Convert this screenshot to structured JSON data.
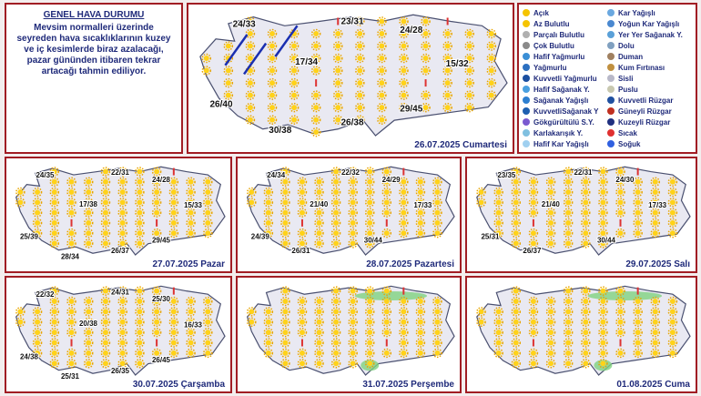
{
  "general": {
    "title": "GENEL HAVA DURUMU",
    "text": "Mevsim normalleri üzerinde seyreden hava sıcaklıklarının kuzey ve iç kesimlerde biraz azalacağı, pazar gününden itibaren tekrar artacağı tahmin ediliyor."
  },
  "legend": [
    "Açık",
    "Az Bulutlu",
    "Parçalı Bulutlu",
    "Çok Bulutlu",
    "Hafif Yağmurlu",
    "Yağmurlu",
    "Kuvvetli Yağmurlu",
    "Hafif Sağanak Y.",
    "Sağanak Yağışlı",
    "KuvvetliSağanak Y",
    "Gökgürültülü S.Y.",
    "Karlakarışık Y.",
    "Hafif Kar Yağışlı",
    "Kar Yağışlı",
    "Yoğun Kar Yağışlı",
    "Yer Yer Sağanak Y.",
    "Dolu",
    "Duman",
    "Kum Fırtınası",
    "Sisli",
    "Puslu",
    "Kuvvetli Rüzgar",
    "Güneyli Rüzgar",
    "Kuzeyli Rüzgar",
    "Sıcak",
    "Soğuk"
  ],
  "maps": [
    {
      "date": "26.07.2025 Cumartesi",
      "temps": [
        "24/33",
        "23/31",
        "24/28",
        "17/34",
        "15/32",
        "26/40",
        "30/38",
        "26/38",
        "29/45"
      ]
    },
    {
      "date": "27.07.2025 Pazar",
      "temps": [
        "24/35",
        "22/31",
        "24/28",
        "17/38",
        "15/33",
        "25/39",
        "28/34",
        "26/37",
        "29/45"
      ]
    },
    {
      "date": "28.07.2025 Pazartesi",
      "temps": [
        "24/34",
        "22/32",
        "24/29",
        "21/40",
        "17/33",
        "24/39",
        "26/31",
        "30/44"
      ]
    },
    {
      "date": "29.07.2025 Salı",
      "temps": [
        "23/35",
        "22/31",
        "24/30",
        "21/40",
        "17/33",
        "25/31",
        "26/37",
        "30/44"
      ]
    },
    {
      "date": "30.07.2025 Çarşamba",
      "temps": [
        "22/32",
        "24/31",
        "25/30",
        "20/38",
        "16/33",
        "24/38",
        "25/31",
        "26/35",
        "26/45"
      ]
    },
    {
      "date": "31.07.2025 Perşembe",
      "temps": []
    },
    {
      "date": "01.08.2025 Cuma",
      "temps": []
    }
  ]
}
